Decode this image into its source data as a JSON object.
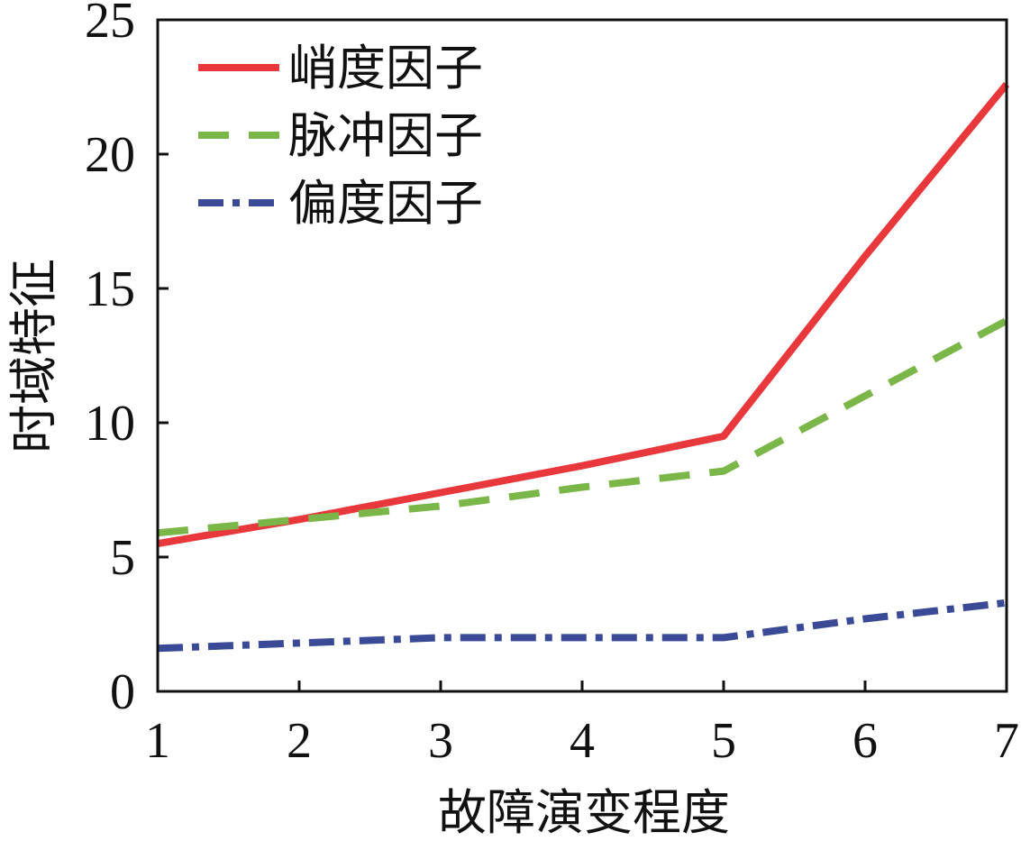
{
  "chart_data": {
    "type": "line",
    "title": "",
    "xlabel": "故障演变程度",
    "ylabel": "时域特征",
    "x": [
      1,
      2,
      3,
      4,
      5,
      6,
      7
    ],
    "xlim": [
      1,
      7
    ],
    "ylim": [
      0,
      25
    ],
    "xticks": [
      "1",
      "2",
      "3",
      "4",
      "5",
      "6",
      "7"
    ],
    "yticks": [
      "0",
      "5",
      "10",
      "15",
      "20",
      "25"
    ],
    "grid": false,
    "legend_position": "top-left",
    "series": [
      {
        "name": "峭度因子",
        "color": "#e8383c",
        "style": "solid",
        "values": [
          5.5,
          6.4,
          7.4,
          8.4,
          9.5,
          16.2,
          22.6
        ]
      },
      {
        "name": "脉冲因子",
        "color": "#7ab648",
        "style": "dashed",
        "values": [
          5.9,
          6.4,
          6.9,
          7.6,
          8.2,
          11.0,
          13.8
        ]
      },
      {
        "name": "偏度因子",
        "color": "#3b4a96",
        "style": "dashdot",
        "values": [
          1.6,
          1.8,
          2.0,
          2.0,
          2.0,
          2.7,
          3.3
        ]
      }
    ]
  }
}
